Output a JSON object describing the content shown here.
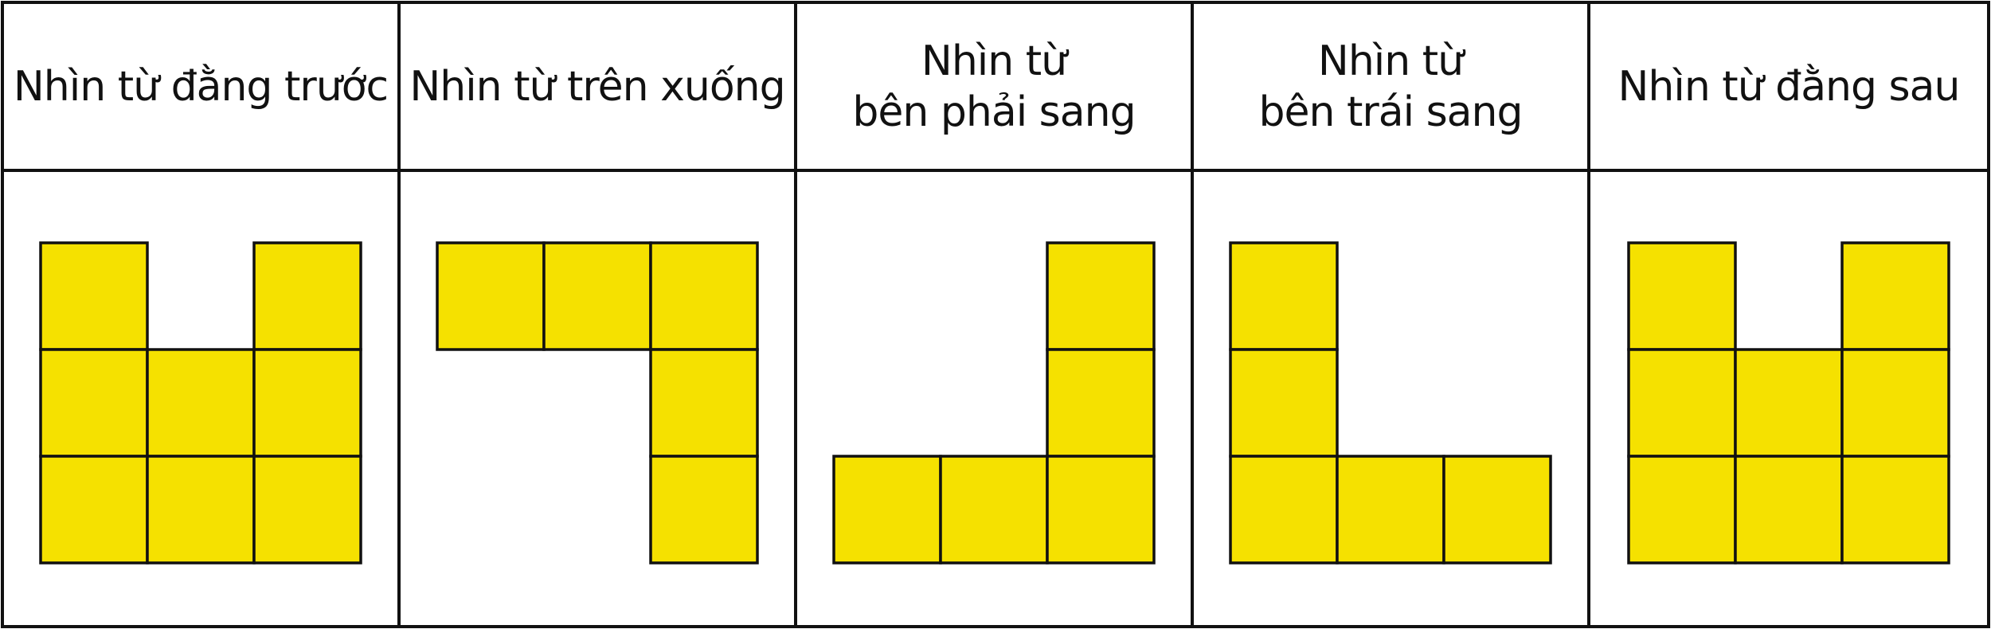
{
  "colors": {
    "square_fill": "#F5E100",
    "line": "#111111",
    "background": "#FFFFFF"
  },
  "views": [
    {
      "label": "Nhìn từ đằng trước",
      "grid": [
        [
          1,
          0,
          1
        ],
        [
          1,
          1,
          1
        ],
        [
          1,
          1,
          1
        ]
      ]
    },
    {
      "label": "Nhìn từ trên xuống",
      "grid": [
        [
          1,
          1,
          1
        ],
        [
          0,
          0,
          1
        ],
        [
          0,
          0,
          1
        ]
      ]
    },
    {
      "label": "Nhìn từ\nbên phải sang",
      "grid": [
        [
          0,
          0,
          1
        ],
        [
          0,
          0,
          1
        ],
        [
          1,
          1,
          1
        ]
      ]
    },
    {
      "label": "Nhìn từ\nbên trái sang",
      "grid": [
        [
          1,
          0,
          0
        ],
        [
          1,
          0,
          0
        ],
        [
          1,
          1,
          1
        ]
      ]
    },
    {
      "label": "Nhìn từ đằng sau",
      "grid": [
        [
          1,
          0,
          1
        ],
        [
          1,
          1,
          1
        ],
        [
          1,
          1,
          1
        ]
      ]
    }
  ]
}
